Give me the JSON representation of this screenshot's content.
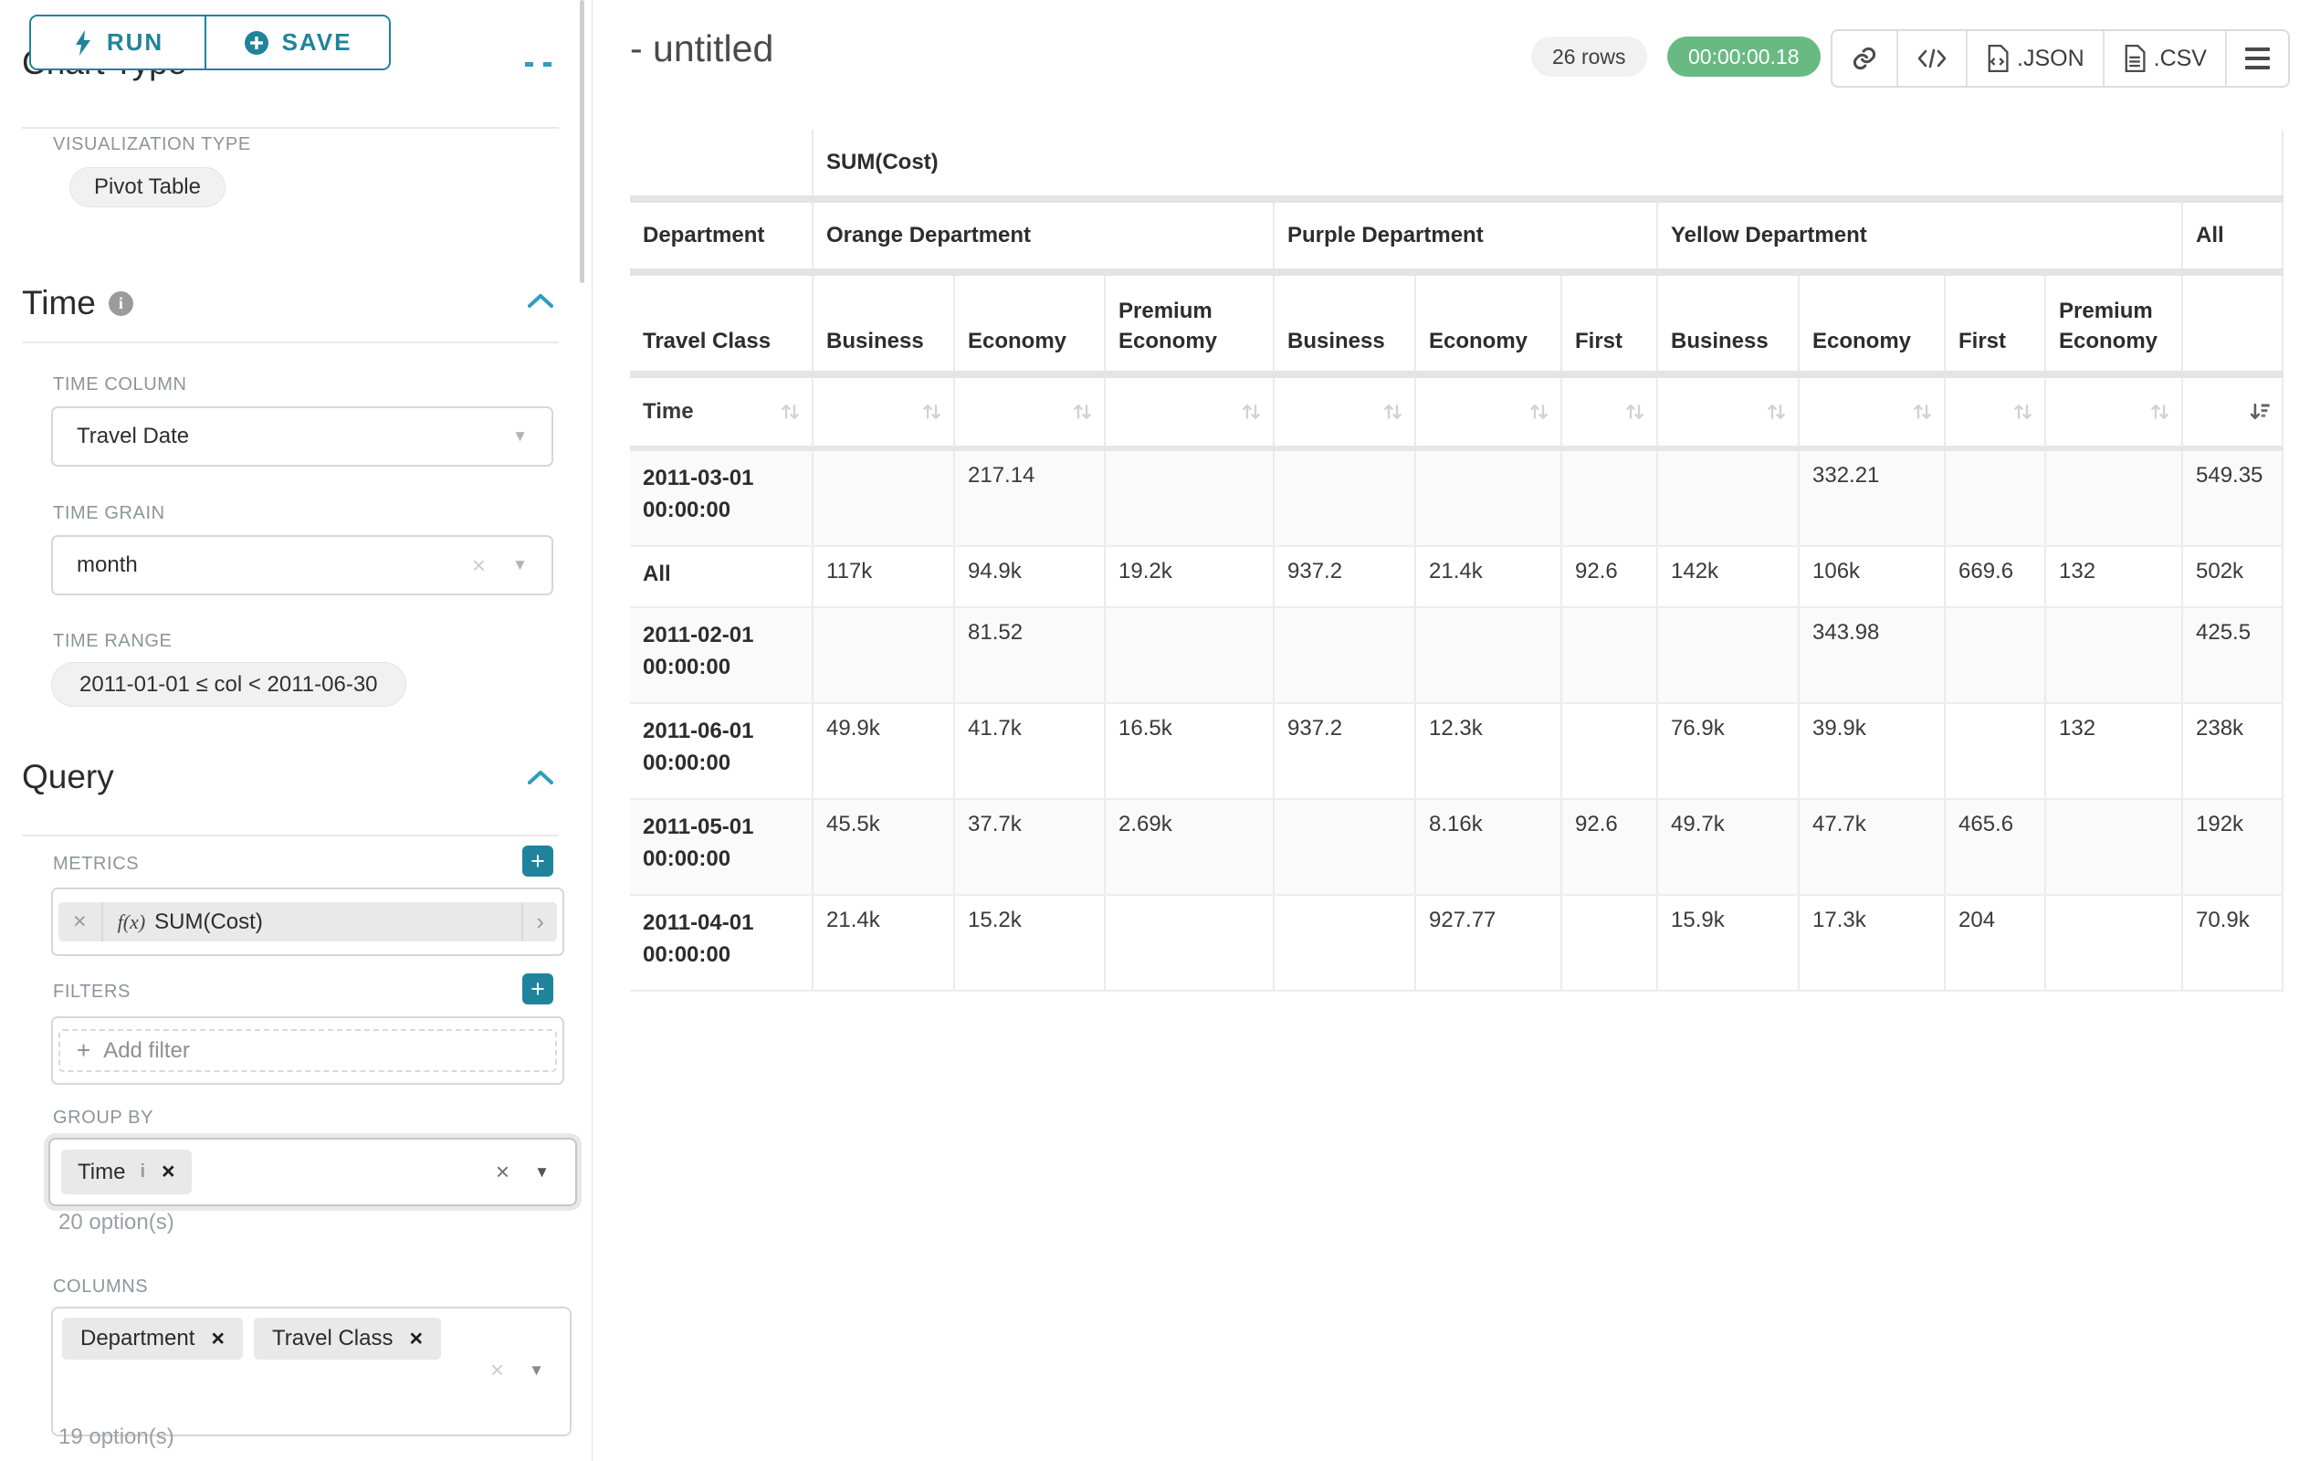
{
  "colors": {
    "accent": "#20839c",
    "success_badge": "#69ba82",
    "chip_bg": "#e9e9e9",
    "label_gray": "#8b959c"
  },
  "icons": {
    "run": "lightning-icon",
    "save": "plus-circle-icon",
    "time_info": "info-icon",
    "collapse": "chevron-up-icon",
    "share": "link-icon",
    "embed": "code-icon",
    "export_json": "file-icon",
    "export_csv": "file-icon",
    "menu": "hamburger-icon",
    "sort_inactive": "sort-arrows-icon",
    "sort_active": "sort-descending-icon"
  },
  "sidebar": {
    "run_label": "RUN",
    "save_label": "SAVE",
    "chart_type_title": "Chart Type",
    "visualization": {
      "label": "VISUALIZATION TYPE",
      "value": "Pivot Table"
    },
    "time": {
      "title": "Time",
      "column": {
        "label": "TIME COLUMN",
        "value": "Travel Date"
      },
      "grain": {
        "label": "TIME GRAIN",
        "value": "month"
      },
      "range": {
        "label": "TIME RANGE",
        "value": "2011-01-01 ≤ col < 2011-06-30"
      }
    },
    "query": {
      "title": "Query",
      "metrics": {
        "label": "METRICS",
        "fn_prefix": "f(x)",
        "metric": "SUM(Cost)"
      },
      "filters": {
        "label": "FILTERS",
        "add_label": "Add filter"
      },
      "group_by": {
        "label": "GROUP BY",
        "chips": [
          "Time"
        ],
        "hint": "20 option(s)"
      },
      "columns": {
        "label": "COLUMNS",
        "chips": [
          "Department",
          "Travel Class"
        ],
        "hint": "19 option(s)"
      }
    }
  },
  "header": {
    "title": "- untitled",
    "row_count": "26 rows",
    "timer": "00:00:00.18",
    "json_label": ".JSON",
    "csv_label": ".CSV"
  },
  "chart_data": {
    "type": "table",
    "metric_header": "SUM(Cost)",
    "row_dimension_header": "Department",
    "row_label_header": "Travel Class",
    "time_header": "Time",
    "column_groups": [
      {
        "label": "Orange Department",
        "columns": [
          "Business",
          "Economy",
          "Premium Economy"
        ]
      },
      {
        "label": "Purple Department",
        "columns": [
          "Business",
          "Economy",
          "First"
        ]
      },
      {
        "label": "Yellow Department",
        "columns": [
          "Business",
          "Economy",
          "First",
          "Premium Economy"
        ]
      },
      {
        "label": "All",
        "columns": [
          ""
        ]
      }
    ],
    "rows": [
      {
        "label": "2011-03-01 00:00:00",
        "values": [
          "",
          "217.14",
          "",
          "",
          "",
          "",
          "",
          "332.21",
          "",
          "",
          "549.35"
        ]
      },
      {
        "label": "All",
        "values": [
          "117k",
          "94.9k",
          "19.2k",
          "937.2",
          "21.4k",
          "92.6",
          "142k",
          "106k",
          "669.6",
          "132",
          "502k"
        ]
      },
      {
        "label": "2011-02-01 00:00:00",
        "values": [
          "",
          "81.52",
          "",
          "",
          "",
          "",
          "",
          "343.98",
          "",
          "",
          "425.5"
        ]
      },
      {
        "label": "2011-06-01 00:00:00",
        "values": [
          "49.9k",
          "41.7k",
          "16.5k",
          "937.2",
          "12.3k",
          "",
          "76.9k",
          "39.9k",
          "",
          "132",
          "238k"
        ]
      },
      {
        "label": "2011-05-01 00:00:00",
        "values": [
          "45.5k",
          "37.7k",
          "2.69k",
          "",
          "8.16k",
          "92.6",
          "49.7k",
          "47.7k",
          "465.6",
          "",
          "192k"
        ]
      },
      {
        "label": "2011-04-01 00:00:00",
        "values": [
          "21.4k",
          "15.2k",
          "",
          "",
          "927.77",
          "",
          "15.9k",
          "17.3k",
          "204",
          "",
          "70.9k"
        ]
      }
    ],
    "sorted_column": "All",
    "sort_direction": "desc"
  }
}
